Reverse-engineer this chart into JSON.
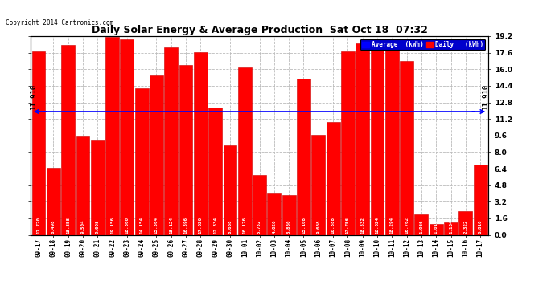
{
  "title": "Daily Solar Energy & Average Production  Sat Oct 18  07:32",
  "copyright": "Copyright 2014 Cartronics.com",
  "average_label": "11.910",
  "average_value": 11.91,
  "bar_color": "#FF0000",
  "average_line_color": "#0000FF",
  "background_color": "#FFFFFF",
  "grid_color": "#BBBBBB",
  "ylim": [
    0,
    19.2
  ],
  "yticks": [
    0.0,
    1.6,
    3.2,
    4.8,
    6.4,
    8.0,
    9.6,
    11.2,
    12.8,
    14.4,
    16.0,
    17.6,
    19.2
  ],
  "categories": [
    "09-17",
    "09-18",
    "09-19",
    "09-20",
    "09-21",
    "09-22",
    "09-23",
    "09-24",
    "09-25",
    "09-26",
    "09-27",
    "09-28",
    "09-29",
    "09-30",
    "10-01",
    "10-02",
    "10-03",
    "10-04",
    "10-05",
    "10-06",
    "10-07",
    "10-08",
    "10-09",
    "10-10",
    "10-11",
    "10-12",
    "10-13",
    "10-14",
    "10-15",
    "10-16",
    "10-17"
  ],
  "values": [
    17.72,
    6.498,
    18.358,
    9.504,
    9.098,
    19.156,
    18.86,
    14.154,
    15.364,
    18.124,
    16.396,
    17.626,
    12.334,
    8.668,
    16.176,
    5.752,
    4.026,
    3.86,
    15.108,
    9.668,
    10.888,
    17.756,
    18.532,
    18.024,
    18.294,
    16.762,
    1.966,
    1.016,
    1.184,
    2.322,
    6.81
  ],
  "legend_avg_color": "#0000FF",
  "legend_daily_color": "#FF0000",
  "legend_avg_text": "Average  (kWh)",
  "legend_daily_text": "Daily   (kWh)"
}
